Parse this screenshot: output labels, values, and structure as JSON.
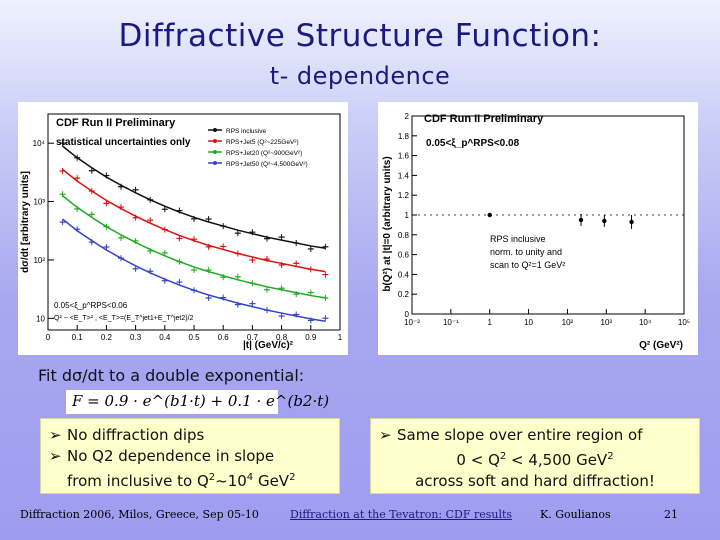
{
  "title": "Diffractive Structure Function:",
  "subtitle": "t- dependence",
  "fit_label": "Fit dσ/dt to a double exponential:",
  "formula": "F = 0.9 · e^(b1·t) + 0.1 · e^(b2·t)",
  "left_box": {
    "bullet1": "No diffraction dips",
    "bullet2": "No Q2 dependence in slope",
    "bullet3_text": "from inclusive to Q",
    "bullet3_sup1": "2",
    "bullet3_mid": "~10",
    "bullet3_sup2": "4",
    "bullet3_unit": " GeV",
    "bullet3_sup3": "2"
  },
  "right_box": {
    "bullet1": "Same slope over entire region of",
    "line2_a": "0 < Q",
    "line2_sup1": "2",
    "line2_b": " < 4,500 GeV",
    "line2_sup2": "2",
    "line3": "across soft and hard diffraction!"
  },
  "footer": {
    "conference": "Diffraction 2006, Milos, Greece, Sep 05-10",
    "talk_title": "Diffraction at the Tevatron: CDF results",
    "author": "K. Goulianos",
    "page_number": "21"
  },
  "chart_data": [
    {
      "type": "scatter",
      "title": "CDF Run II Preliminary",
      "note": "statistical uncertainties only",
      "xlabel": "|t| (GeV/c)²",
      "ylabel": "dσ/dt [arbitrary units]",
      "x_ticks": [
        "0",
        "0.1",
        "0.2",
        "0.3",
        "0.4",
        "0.5",
        "0.6",
        "0.7",
        "0.8",
        "0.9",
        "1"
      ],
      "y_ticks": [
        "10",
        "10²",
        "10³",
        "10⁴"
      ],
      "xlim": [
        0,
        1
      ],
      "ylim_log10": [
        0.8,
        4.5
      ],
      "annotations": [
        "0.05<ξ_p^RPS<0.06",
        "Q² ~ <E_T>² , <E_T>=(E_T^jet1+E_T^jet2)/2"
      ],
      "x": [
        0.05,
        0.1,
        0.15,
        0.2,
        0.25,
        0.3,
        0.35,
        0.4,
        0.45,
        0.5,
        0.55,
        0.6,
        0.65,
        0.7,
        0.75,
        0.8,
        0.85,
        0.9,
        0.95
      ],
      "series": [
        {
          "name": "RPS inclusive",
          "color": "#111111",
          "log10_values": [
            3.95,
            3.75,
            3.58,
            3.42,
            3.28,
            3.15,
            3.03,
            2.92,
            2.82,
            2.73,
            2.65,
            2.58,
            2.51,
            2.45,
            2.39,
            2.34,
            2.29,
            2.24,
            2.2
          ]
        },
        {
          "name": "RPS+Jet5 (Q²~225GeV²)",
          "color": "#dd1111",
          "log10_values": [
            3.55,
            3.35,
            3.18,
            3.02,
            2.88,
            2.75,
            2.63,
            2.52,
            2.42,
            2.33,
            2.25,
            2.18,
            2.11,
            2.05,
            1.99,
            1.94,
            1.89,
            1.84,
            1.8
          ]
        },
        {
          "name": "RPS+Jet20 (Q²~900GeV²)",
          "color": "#22aa22",
          "log10_values": [
            3.1,
            2.9,
            2.73,
            2.57,
            2.43,
            2.3,
            2.18,
            2.07,
            1.97,
            1.88,
            1.8,
            1.73,
            1.66,
            1.6,
            1.54,
            1.49,
            1.44,
            1.39,
            1.35
          ]
        },
        {
          "name": "RPS+Jet50 (Q²~4,500GeV²)",
          "color": "#3344cc",
          "log10_values": [
            2.7,
            2.5,
            2.33,
            2.17,
            2.03,
            1.9,
            1.78,
            1.67,
            1.57,
            1.48,
            1.4,
            1.33,
            1.26,
            1.2,
            1.14,
            1.09,
            1.04,
            0.99,
            0.95
          ]
        }
      ]
    },
    {
      "type": "scatter",
      "title": "CDF Run II Preliminary",
      "xlabel": "Q² (GeV²)",
      "ylabel": "b(Q²) at |t|=0 (arbitrary units)",
      "x_ticks": [
        "10⁻²",
        "10⁻¹",
        "1",
        "10",
        "10²",
        "10³",
        "10⁴",
        "10⁵"
      ],
      "y_ticks": [
        "0",
        "0.2",
        "0.4",
        "0.6",
        "0.8",
        "1",
        "1.2",
        "1.4",
        "1.6",
        "1.8",
        "2"
      ],
      "xlim_log10": [
        -2,
        5
      ],
      "ylim": [
        0,
        2
      ],
      "annotations": [
        "0.05<ξ_p^RPS<0.08",
        "RPS inclusive",
        "norm. to unity and",
        "scan to Q²=1 GeV²"
      ],
      "points": [
        {
          "log10_x": 0.0,
          "y": 1.0,
          "err": 0.0
        },
        {
          "log10_x": 2.35,
          "y": 0.95,
          "err": 0.06
        },
        {
          "log10_x": 2.95,
          "y": 0.94,
          "err": 0.06
        },
        {
          "log10_x": 3.65,
          "y": 0.93,
          "err": 0.07
        }
      ]
    }
  ]
}
